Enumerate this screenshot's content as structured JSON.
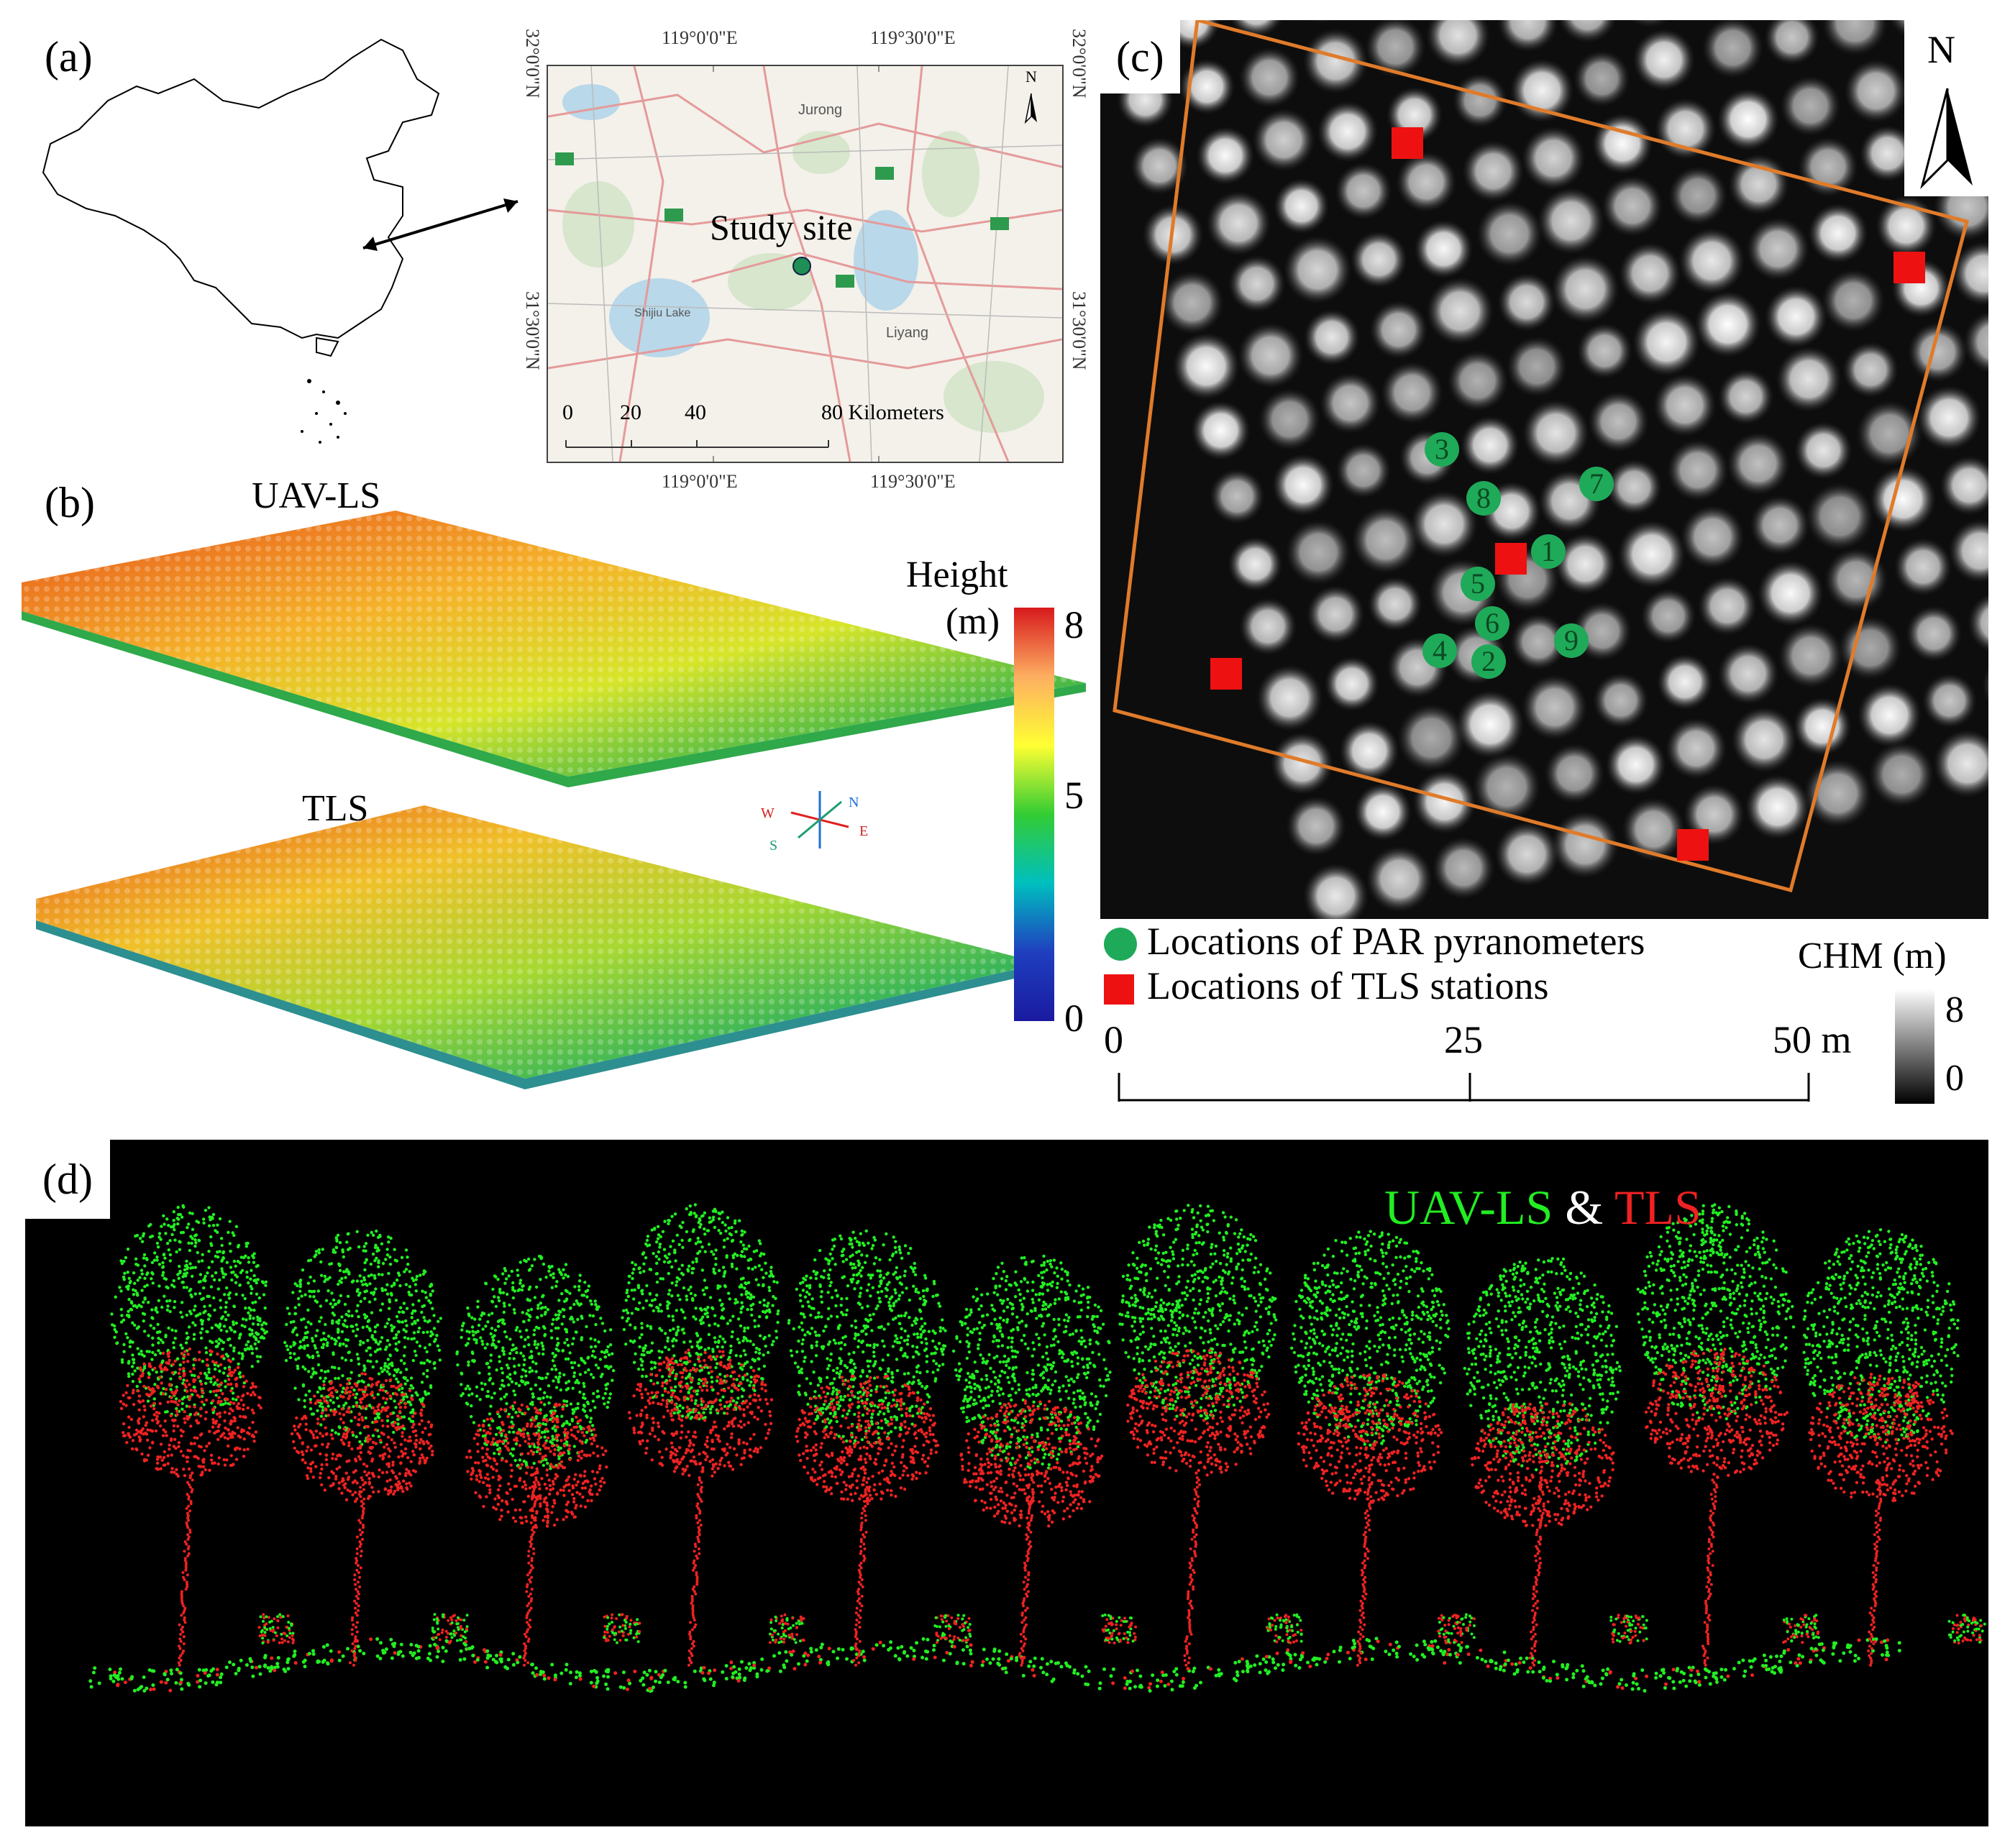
{
  "panels": {
    "a": {
      "label": "(a)",
      "inset": {
        "top_lon": [
          "119°0'0\"E",
          "119°30'0\"E"
        ],
        "bottom_lon": [
          "119°0'0\"E",
          "119°30'0\"E"
        ],
        "left_lat": [
          "32°0'0\"N",
          "31°30'0\"N"
        ],
        "right_lat": [
          "32°0'0\"N",
          "31°30'0\"N"
        ],
        "place_names": [
          "Jurong",
          "Shijiu Lake",
          "Liyang"
        ],
        "study_site": "Study site",
        "north": "N",
        "scale_ticks": [
          "0",
          "20",
          "40",
          "80 Kilometers"
        ]
      }
    },
    "b": {
      "label": "(b)",
      "uav_title": "UAV-LS",
      "tls_title": "TLS",
      "colorbar": {
        "title_line1": "Height",
        "title_line2": "(m)",
        "ticks": [
          "8",
          "5",
          "0"
        ],
        "colors": [
          "#d7191c",
          "#fdae61",
          "#ffff33",
          "#33cc33",
          "#00bfbf",
          "#1f3fbf",
          "#1a1aa0"
        ]
      },
      "compass": {
        "w": "W",
        "n": "N",
        "s": "S",
        "e": "E"
      }
    },
    "c": {
      "label": "(c)",
      "north": "N",
      "pyranometers": [
        "1",
        "2",
        "3",
        "4",
        "5",
        "6",
        "7",
        "8",
        "9"
      ],
      "legend_pyranometer": "Locations of PAR pyranometers",
      "legend_tls": "Locations of TLS stations",
      "scale_ticks": [
        "0",
        "25",
        "50 m"
      ],
      "chm": {
        "title": "CHM (m)",
        "max": "8",
        "min": "0"
      },
      "colors": {
        "pyranometer": "#1faa59",
        "station": "#ee1111",
        "plot_border": "#e07b2a"
      }
    },
    "d": {
      "label": "(d)",
      "title_uav": "UAV-LS",
      "title_amp": " & ",
      "title_tls": "TLS",
      "colors": {
        "uav": "#22ee22",
        "tls": "#ee2222"
      }
    }
  }
}
